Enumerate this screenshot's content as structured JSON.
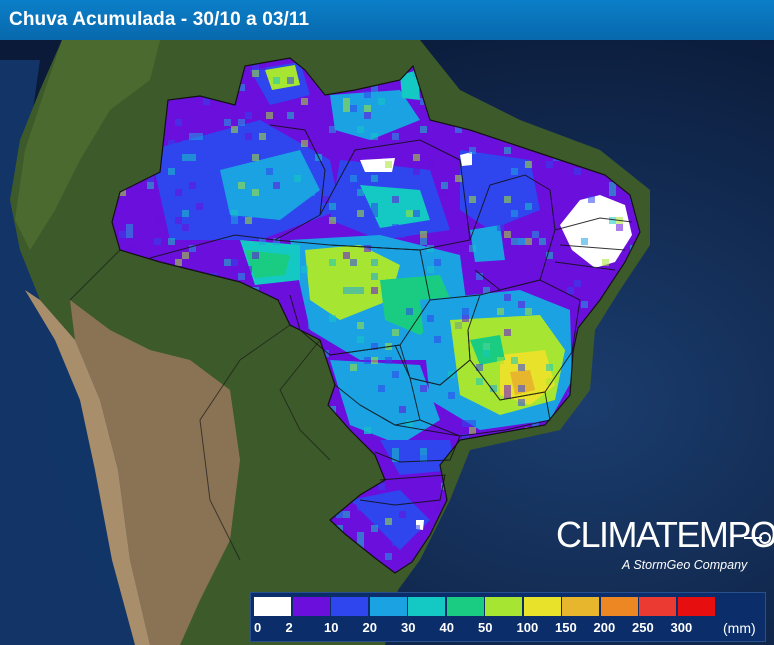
{
  "header": {
    "title": "Chuva Acumulada - 30/10 a 03/11"
  },
  "brand": {
    "name": "CLIMATEMPO",
    "tagline": "A StormGeo Company"
  },
  "legend": {
    "unit": "(mm)",
    "ticks": [
      "0",
      "2",
      "10",
      "20",
      "30",
      "40",
      "50",
      "100",
      "150",
      "200",
      "250",
      "300"
    ],
    "colors": [
      "#ffffff",
      "#6a0fdc",
      "#2f45ee",
      "#1ba2e2",
      "#14c9c3",
      "#19cc82",
      "#a6e632",
      "#e8e22a",
      "#e8b62c",
      "#ec8724",
      "#ea3a32",
      "#e60e0e"
    ]
  },
  "map": {
    "ocean_color": "#0d2446",
    "land_color": "#3a5a28",
    "rain_colors": {
      "white": "#ffffff",
      "violet": "#6a0fdc",
      "blue": "#2f45ee",
      "cyan": "#1ba2e2",
      "teal": "#14c9c3",
      "green": "#19cc82",
      "lime": "#a6e632",
      "yellow": "#e8e22a",
      "orange": "#e8b62c"
    }
  }
}
